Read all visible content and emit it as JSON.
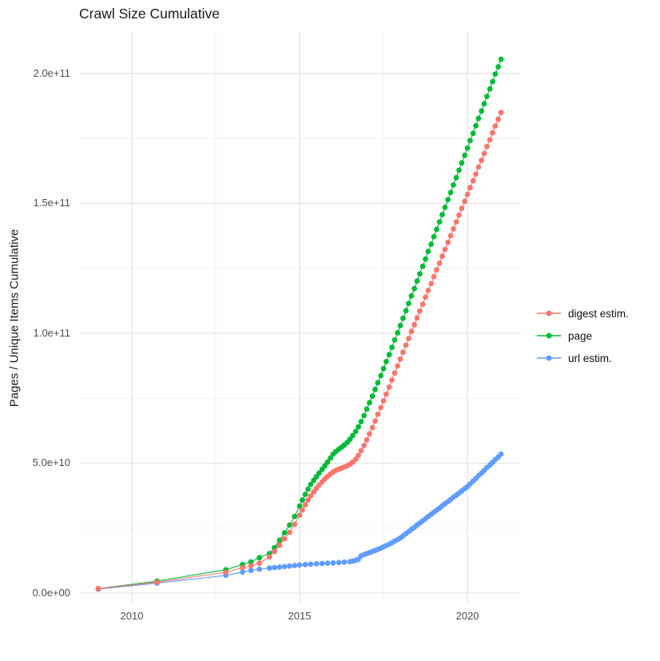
{
  "title": "Crawl Size Cumulative",
  "y_axis": {
    "title": "Pages / Unique Items Cumulative",
    "ticks": [
      "0.0e+00",
      "5.0e+10",
      "1.0e+11",
      "1.5e+11",
      "2.0e+11"
    ]
  },
  "x_axis": {
    "ticks": [
      "2010",
      "2015",
      "2020"
    ]
  },
  "legend": {
    "items": [
      {
        "label": "digest estim.",
        "color": "#F8766D"
      },
      {
        "label": "page",
        "color": "#00BA38"
      },
      {
        "label": "url estim.",
        "color": "#619CFF"
      }
    ]
  },
  "chart_data": {
    "type": "scatter",
    "title": "Crawl Size Cumulative",
    "xlabel": "",
    "ylabel": "Pages / Unique Items Cumulative",
    "point_units": [
      "year_decimal",
      "billions_of_items"
    ],
    "xlim": [
      2008.45,
      2021.6
    ],
    "ylim_billions": [
      -3,
      216
    ],
    "x_major_ticks": [
      2010,
      2015,
      2020
    ],
    "x_minor_ticks": [
      2012.5,
      2017.5
    ],
    "y_major_ticks_billions": [
      0,
      50,
      100,
      150,
      200
    ],
    "y_minor_ticks_billions": [
      25,
      75,
      125,
      175
    ],
    "grid": "major+minor, light gray on white",
    "legend_position": "right",
    "series": [
      {
        "name": "digest estim.",
        "color": "#F8766D",
        "points": [
          [
            2009.0,
            1.7
          ],
          [
            2010.75,
            4.2
          ],
          [
            2012.8,
            8.0
          ],
          [
            2013.3,
            9.8
          ],
          [
            2013.55,
            10.5
          ],
          [
            2013.8,
            11.5
          ],
          [
            2014.1,
            13.9
          ],
          [
            2014.25,
            16.0
          ],
          [
            2014.4,
            18.4
          ],
          [
            2014.55,
            20.9
          ],
          [
            2014.7,
            23.4
          ],
          [
            2014.85,
            26.5
          ],
          [
            2015.0,
            30.0
          ],
          [
            2015.08,
            32.0
          ],
          [
            2015.17,
            34.0
          ],
          [
            2015.25,
            35.8
          ],
          [
            2015.33,
            37.4
          ],
          [
            2015.42,
            38.9
          ],
          [
            2015.5,
            40.3
          ],
          [
            2015.58,
            41.6
          ],
          [
            2015.67,
            42.8
          ],
          [
            2015.75,
            43.9
          ],
          [
            2015.83,
            44.9
          ],
          [
            2015.92,
            45.8
          ],
          [
            2016.0,
            46.6
          ],
          [
            2016.08,
            47.2
          ],
          [
            2016.17,
            47.7
          ],
          [
            2016.25,
            48.1
          ],
          [
            2016.33,
            48.5
          ],
          [
            2016.42,
            49.0
          ],
          [
            2016.5,
            49.6
          ],
          [
            2016.58,
            50.4
          ],
          [
            2016.67,
            51.5
          ],
          [
            2016.75,
            53.0
          ],
          [
            2016.83,
            54.8
          ],
          [
            2016.92,
            56.8
          ],
          [
            2017.0,
            59.0
          ],
          [
            2017.08,
            61.3
          ],
          [
            2017.17,
            63.7
          ],
          [
            2017.25,
            66.2
          ],
          [
            2017.33,
            68.8
          ],
          [
            2017.42,
            71.4
          ],
          [
            2017.5,
            74.0
          ],
          [
            2017.58,
            76.6
          ],
          [
            2017.67,
            79.3
          ],
          [
            2017.75,
            82.0
          ],
          [
            2017.83,
            84.7
          ],
          [
            2017.92,
            87.4
          ],
          [
            2018.0,
            90.1
          ],
          [
            2018.08,
            92.7
          ],
          [
            2018.17,
            95.4
          ],
          [
            2018.25,
            98.0
          ],
          [
            2018.33,
            100.7
          ],
          [
            2018.42,
            103.3
          ],
          [
            2018.5,
            105.9
          ],
          [
            2018.58,
            108.6
          ],
          [
            2018.67,
            111.2
          ],
          [
            2018.75,
            113.9
          ],
          [
            2018.83,
            116.5
          ],
          [
            2018.92,
            119.1
          ],
          [
            2019.0,
            121.8
          ],
          [
            2019.08,
            124.4
          ],
          [
            2019.17,
            127.0
          ],
          [
            2019.25,
            129.7
          ],
          [
            2019.33,
            132.3
          ],
          [
            2019.42,
            135.0
          ],
          [
            2019.5,
            137.6
          ],
          [
            2019.58,
            140.2
          ],
          [
            2019.67,
            142.9
          ],
          [
            2019.75,
            145.5
          ],
          [
            2019.83,
            148.1
          ],
          [
            2019.92,
            150.8
          ],
          [
            2020.0,
            153.4
          ],
          [
            2020.08,
            156.1
          ],
          [
            2020.17,
            158.7
          ],
          [
            2020.25,
            161.3
          ],
          [
            2020.33,
            164.0
          ],
          [
            2020.42,
            166.6
          ],
          [
            2020.5,
            169.2
          ],
          [
            2020.58,
            171.9
          ],
          [
            2020.67,
            174.5
          ],
          [
            2020.75,
            177.2
          ],
          [
            2020.83,
            179.8
          ],
          [
            2020.92,
            182.4
          ],
          [
            2021.0,
            185.0
          ]
        ]
      },
      {
        "name": "page",
        "color": "#00BA38",
        "points": [
          [
            2009.0,
            1.7
          ],
          [
            2010.75,
            4.6
          ],
          [
            2012.8,
            9.0
          ],
          [
            2013.3,
            11.0
          ],
          [
            2013.55,
            12.0
          ],
          [
            2013.8,
            13.6
          ],
          [
            2014.1,
            15.2
          ],
          [
            2014.25,
            17.5
          ],
          [
            2014.4,
            20.3
          ],
          [
            2014.55,
            23.2
          ],
          [
            2014.7,
            26.2
          ],
          [
            2014.85,
            29.5
          ],
          [
            2015.0,
            33.5
          ],
          [
            2015.08,
            35.8
          ],
          [
            2015.17,
            38.0
          ],
          [
            2015.25,
            40.0
          ],
          [
            2015.33,
            41.8
          ],
          [
            2015.42,
            43.4
          ],
          [
            2015.5,
            44.8
          ],
          [
            2015.58,
            46.2
          ],
          [
            2015.67,
            47.6
          ],
          [
            2015.75,
            49.0
          ],
          [
            2015.83,
            50.4
          ],
          [
            2015.92,
            52.0
          ],
          [
            2016.0,
            53.5
          ],
          [
            2016.08,
            54.5
          ],
          [
            2016.17,
            55.4
          ],
          [
            2016.25,
            56.2
          ],
          [
            2016.33,
            57.0
          ],
          [
            2016.42,
            58.0
          ],
          [
            2016.5,
            59.2
          ],
          [
            2016.58,
            60.6
          ],
          [
            2016.67,
            62.2
          ],
          [
            2016.75,
            64.0
          ],
          [
            2016.83,
            66.0
          ],
          [
            2016.92,
            68.3
          ],
          [
            2017.0,
            70.8
          ],
          [
            2017.08,
            73.3
          ],
          [
            2017.17,
            75.8
          ],
          [
            2017.25,
            78.4
          ],
          [
            2017.33,
            81.0
          ],
          [
            2017.42,
            83.7
          ],
          [
            2017.5,
            86.4
          ],
          [
            2017.58,
            89.1
          ],
          [
            2017.67,
            91.8
          ],
          [
            2017.75,
            94.6
          ],
          [
            2017.83,
            97.4
          ],
          [
            2017.92,
            100.2
          ],
          [
            2018.0,
            103.0
          ],
          [
            2018.08,
            105.8
          ],
          [
            2018.17,
            108.7
          ],
          [
            2018.25,
            111.5
          ],
          [
            2018.33,
            114.4
          ],
          [
            2018.42,
            117.2
          ],
          [
            2018.5,
            120.1
          ],
          [
            2018.58,
            122.9
          ],
          [
            2018.67,
            125.8
          ],
          [
            2018.75,
            128.6
          ],
          [
            2018.83,
            131.5
          ],
          [
            2018.92,
            134.3
          ],
          [
            2019.0,
            137.2
          ],
          [
            2019.08,
            140.0
          ],
          [
            2019.17,
            142.9
          ],
          [
            2019.25,
            145.7
          ],
          [
            2019.33,
            148.5
          ],
          [
            2019.42,
            151.4
          ],
          [
            2019.5,
            154.2
          ],
          [
            2019.58,
            157.1
          ],
          [
            2019.67,
            159.9
          ],
          [
            2019.75,
            162.8
          ],
          [
            2019.83,
            165.6
          ],
          [
            2019.92,
            168.5
          ],
          [
            2020.0,
            171.3
          ],
          [
            2020.08,
            174.2
          ],
          [
            2020.17,
            177.0
          ],
          [
            2020.25,
            179.9
          ],
          [
            2020.33,
            182.7
          ],
          [
            2020.42,
            185.6
          ],
          [
            2020.5,
            188.4
          ],
          [
            2020.58,
            191.2
          ],
          [
            2020.67,
            194.1
          ],
          [
            2020.75,
            196.9
          ],
          [
            2020.83,
            199.8
          ],
          [
            2020.92,
            202.6
          ],
          [
            2021.0,
            205.5
          ]
        ]
      },
      {
        "name": "url estim.",
        "color": "#619CFF",
        "points": [
          [
            2009.0,
            1.5
          ],
          [
            2010.75,
            3.8
          ],
          [
            2012.8,
            6.8
          ],
          [
            2013.3,
            8.1
          ],
          [
            2013.55,
            8.7
          ],
          [
            2013.8,
            9.2
          ],
          [
            2014.1,
            9.6
          ],
          [
            2014.25,
            9.8
          ],
          [
            2014.4,
            10.0
          ],
          [
            2014.55,
            10.2
          ],
          [
            2014.7,
            10.4
          ],
          [
            2014.85,
            10.6
          ],
          [
            2015.0,
            10.8
          ],
          [
            2015.17,
            11.0
          ],
          [
            2015.33,
            11.1
          ],
          [
            2015.5,
            11.25
          ],
          [
            2015.67,
            11.4
          ],
          [
            2015.83,
            11.5
          ],
          [
            2016.0,
            11.6
          ],
          [
            2016.17,
            11.75
          ],
          [
            2016.33,
            11.9
          ],
          [
            2016.5,
            12.1
          ],
          [
            2016.58,
            12.3
          ],
          [
            2016.67,
            12.6
          ],
          [
            2016.75,
            13.0
          ],
          [
            2016.83,
            14.3
          ],
          [
            2016.92,
            14.8
          ],
          [
            2017.0,
            15.2
          ],
          [
            2017.08,
            15.6
          ],
          [
            2017.17,
            16.0
          ],
          [
            2017.25,
            16.4
          ],
          [
            2017.33,
            16.8
          ],
          [
            2017.42,
            17.3
          ],
          [
            2017.5,
            17.8
          ],
          [
            2017.58,
            18.3
          ],
          [
            2017.67,
            18.8
          ],
          [
            2017.75,
            19.4
          ],
          [
            2017.83,
            20.0
          ],
          [
            2017.92,
            20.6
          ],
          [
            2018.0,
            21.2
          ],
          [
            2018.08,
            22.0
          ],
          [
            2018.17,
            22.9
          ],
          [
            2018.25,
            23.7
          ],
          [
            2018.33,
            24.5
          ],
          [
            2018.42,
            25.3
          ],
          [
            2018.5,
            26.2
          ],
          [
            2018.58,
            27.0
          ],
          [
            2018.67,
            27.8
          ],
          [
            2018.75,
            28.6
          ],
          [
            2018.83,
            29.5
          ],
          [
            2018.92,
            30.3
          ],
          [
            2019.0,
            31.1
          ],
          [
            2019.08,
            31.9
          ],
          [
            2019.17,
            32.7
          ],
          [
            2019.25,
            33.6
          ],
          [
            2019.33,
            34.4
          ],
          [
            2019.42,
            35.2
          ],
          [
            2019.5,
            36.0
          ],
          [
            2019.58,
            36.9
          ],
          [
            2019.67,
            37.7
          ],
          [
            2019.75,
            38.5
          ],
          [
            2019.83,
            39.3
          ],
          [
            2019.92,
            40.2
          ],
          [
            2020.0,
            41.0
          ],
          [
            2020.08,
            42.0
          ],
          [
            2020.17,
            43.1
          ],
          [
            2020.25,
            44.1
          ],
          [
            2020.33,
            45.2
          ],
          [
            2020.42,
            46.2
          ],
          [
            2020.5,
            47.2
          ],
          [
            2020.58,
            48.3
          ],
          [
            2020.67,
            49.3
          ],
          [
            2020.75,
            50.3
          ],
          [
            2020.83,
            51.4
          ],
          [
            2020.92,
            52.4
          ],
          [
            2021.0,
            53.5
          ]
        ]
      }
    ]
  }
}
